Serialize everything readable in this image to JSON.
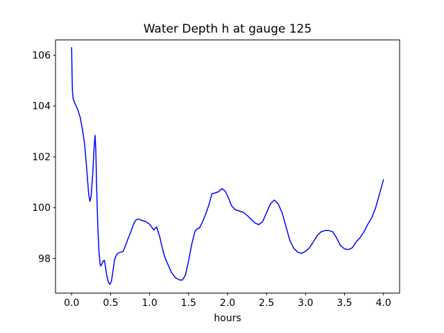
{
  "figure": {
    "background": "#ffffff",
    "axes_border_color": "#000000"
  },
  "chart_data": {
    "type": "line",
    "title": "Water Depth h at gauge 125",
    "xlabel": "hours",
    "ylabel": "",
    "grid": false,
    "legend": null,
    "line_color": "#0000ff",
    "line_width": 1.5,
    "xlim": [
      -0.207,
      4.207
    ],
    "ylim": [
      96.64,
      106.6
    ],
    "xticks": [
      0.0,
      0.5,
      1.0,
      1.5,
      2.0,
      2.5,
      3.0,
      3.5,
      4.0
    ],
    "xtick_labels": [
      "0.0",
      "0.5",
      "1.0",
      "1.5",
      "2.0",
      "2.5",
      "3.0",
      "3.5",
      "4.0"
    ],
    "yticks": [
      98,
      100,
      102,
      104,
      106
    ],
    "ytick_labels": [
      "98",
      "100",
      "102",
      "104",
      "106"
    ],
    "series": [
      {
        "name": "water-depth-h",
        "x": [
          0.0,
          0.005,
          0.01,
          0.02,
          0.05,
          0.08,
          0.11,
          0.14,
          0.165,
          0.185,
          0.205,
          0.22,
          0.235,
          0.25,
          0.27,
          0.285,
          0.3,
          0.31,
          0.32,
          0.335,
          0.35,
          0.365,
          0.375,
          0.39,
          0.405,
          0.42,
          0.435,
          0.45,
          0.47,
          0.49,
          0.51,
          0.53,
          0.55,
          0.575,
          0.6,
          0.63,
          0.66,
          0.69,
          0.72,
          0.76,
          0.8,
          0.83,
          0.86,
          0.9,
          0.95,
          1.0,
          1.03,
          1.055,
          1.075,
          1.09,
          1.11,
          1.13,
          1.16,
          1.19,
          1.23,
          1.28,
          1.33,
          1.38,
          1.42,
          1.46,
          1.5,
          1.54,
          1.58,
          1.61,
          1.64,
          1.68,
          1.72,
          1.76,
          1.8,
          1.84,
          1.88,
          1.93,
          1.97,
          2.01,
          2.05,
          2.1,
          2.15,
          2.2,
          2.25,
          2.3,
          2.35,
          2.4,
          2.45,
          2.5,
          2.55,
          2.6,
          2.65,
          2.7,
          2.75,
          2.8,
          2.85,
          2.9,
          2.95,
          3.0,
          3.05,
          3.1,
          3.15,
          3.2,
          3.25,
          3.3,
          3.35,
          3.4,
          3.45,
          3.5,
          3.55,
          3.6,
          3.65,
          3.7,
          3.75,
          3.8,
          3.85,
          3.9,
          3.95,
          4.0
        ],
        "y": [
          106.3,
          105.3,
          104.6,
          104.28,
          104.05,
          103.85,
          103.55,
          103.05,
          102.55,
          101.85,
          101.05,
          100.5,
          100.25,
          100.45,
          101.3,
          102.2,
          102.85,
          102.3,
          100.9,
          99.3,
          98.3,
          97.78,
          97.7,
          97.8,
          97.9,
          97.93,
          97.65,
          97.35,
          97.08,
          96.98,
          97.1,
          97.5,
          97.95,
          98.15,
          98.22,
          98.25,
          98.28,
          98.5,
          98.75,
          99.05,
          99.4,
          99.53,
          99.55,
          99.5,
          99.45,
          99.35,
          99.22,
          99.12,
          99.2,
          99.24,
          99.05,
          98.85,
          98.45,
          98.1,
          97.8,
          97.45,
          97.25,
          97.16,
          97.15,
          97.35,
          97.9,
          98.55,
          99.05,
          99.17,
          99.2,
          99.45,
          99.75,
          100.1,
          100.55,
          100.58,
          100.62,
          100.75,
          100.65,
          100.4,
          100.08,
          99.92,
          99.87,
          99.82,
          99.7,
          99.55,
          99.4,
          99.33,
          99.45,
          99.8,
          100.15,
          100.3,
          100.15,
          99.8,
          99.25,
          98.7,
          98.4,
          98.25,
          98.2,
          98.28,
          98.42,
          98.65,
          98.9,
          99.05,
          99.1,
          99.1,
          99.05,
          98.8,
          98.5,
          98.38,
          98.35,
          98.42,
          98.65,
          98.82,
          99.05,
          99.35,
          99.6,
          100.0,
          100.55,
          101.1
        ]
      }
    ]
  }
}
